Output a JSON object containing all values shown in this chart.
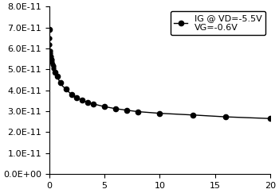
{
  "x_data": [
    0.0,
    0.02,
    0.04,
    0.07,
    0.1,
    0.13,
    0.17,
    0.2,
    0.25,
    0.3,
    0.35,
    0.4,
    0.45,
    0.5,
    0.6,
    0.7,
    0.8,
    0.9,
    1.0,
    1.2,
    1.5,
    2.0,
    2.5,
    3.0,
    3.5,
    4.0,
    4.5,
    5.0,
    6.0,
    7.0,
    8.0,
    10.0,
    13.0,
    16.0,
    20.0
  ],
  "y_data": [
    6.9e-11,
    6.5e-11,
    6.2e-11,
    5.9e-11,
    5.75e-11,
    5.6e-11,
    5.5e-11,
    5.45e-11,
    5.35e-11,
    5.25e-11,
    5.15e-11,
    5.05e-11,
    4.95e-11,
    4.85e-11,
    4.75e-11,
    4.65e-11,
    4.55e-11,
    4.45e-11,
    4.35e-11,
    4.2e-11,
    4.05e-11,
    3.8e-11,
    3.65e-11,
    3.52e-11,
    3.42e-11,
    3.35e-11,
    3.28e-11,
    3.22e-11,
    3.12e-11,
    3.05e-11,
    2.98e-11,
    2.9e-11,
    2.82e-11,
    2.73e-11,
    2.65e-11
  ],
  "marker_x": [
    0.0,
    0.5,
    0.7,
    1.0,
    1.5,
    2.0,
    2.5,
    3.0,
    3.5,
    4.0,
    5.0,
    6.0,
    7.0,
    8.0,
    10.0,
    13.0,
    16.0,
    20.0
  ],
  "marker_y": [
    6.9e-11,
    4.85e-11,
    4.65e-11,
    4.35e-11,
    4.05e-11,
    3.8e-11,
    3.65e-11,
    3.52e-11,
    3.42e-11,
    3.35e-11,
    3.22e-11,
    3.12e-11,
    3.05e-11,
    2.98e-11,
    2.9e-11,
    2.82e-11,
    2.73e-11,
    2.65e-11
  ],
  "dense_x": [
    0.02,
    0.04,
    0.07,
    0.1,
    0.13,
    0.17,
    0.2,
    0.25,
    0.3,
    0.35,
    0.4
  ],
  "dense_y": [
    6.5e-11,
    6.2e-11,
    5.9e-11,
    5.75e-11,
    5.6e-11,
    5.5e-11,
    5.45e-11,
    5.35e-11,
    5.25e-11,
    5.15e-11,
    5.05e-11
  ],
  "line_color": "#000000",
  "marker_color": "#000000",
  "legend_label_line1": "IG @ VD=-5.5V",
  "legend_label_line2": "VG=-0.6V",
  "xlim": [
    0,
    20
  ],
  "ylim": [
    0,
    8e-11
  ],
  "xticks": [
    0,
    5,
    10,
    15,
    20
  ],
  "yticks": [
    0.0,
    1e-11,
    2e-11,
    3e-11,
    4e-11,
    5e-11,
    6e-11,
    7e-11,
    8e-11
  ],
  "ytick_labels": [
    "0.0E+00",
    "1.0E-11",
    "2.0E-11",
    "3.0E-11",
    "4.0E-11",
    "5.0E-11",
    "6.0E-11",
    "7.0E-11",
    "8.0E-11"
  ],
  "background_color": "#ffffff",
  "figsize": [
    3.5,
    2.43
  ],
  "dpi": 100
}
